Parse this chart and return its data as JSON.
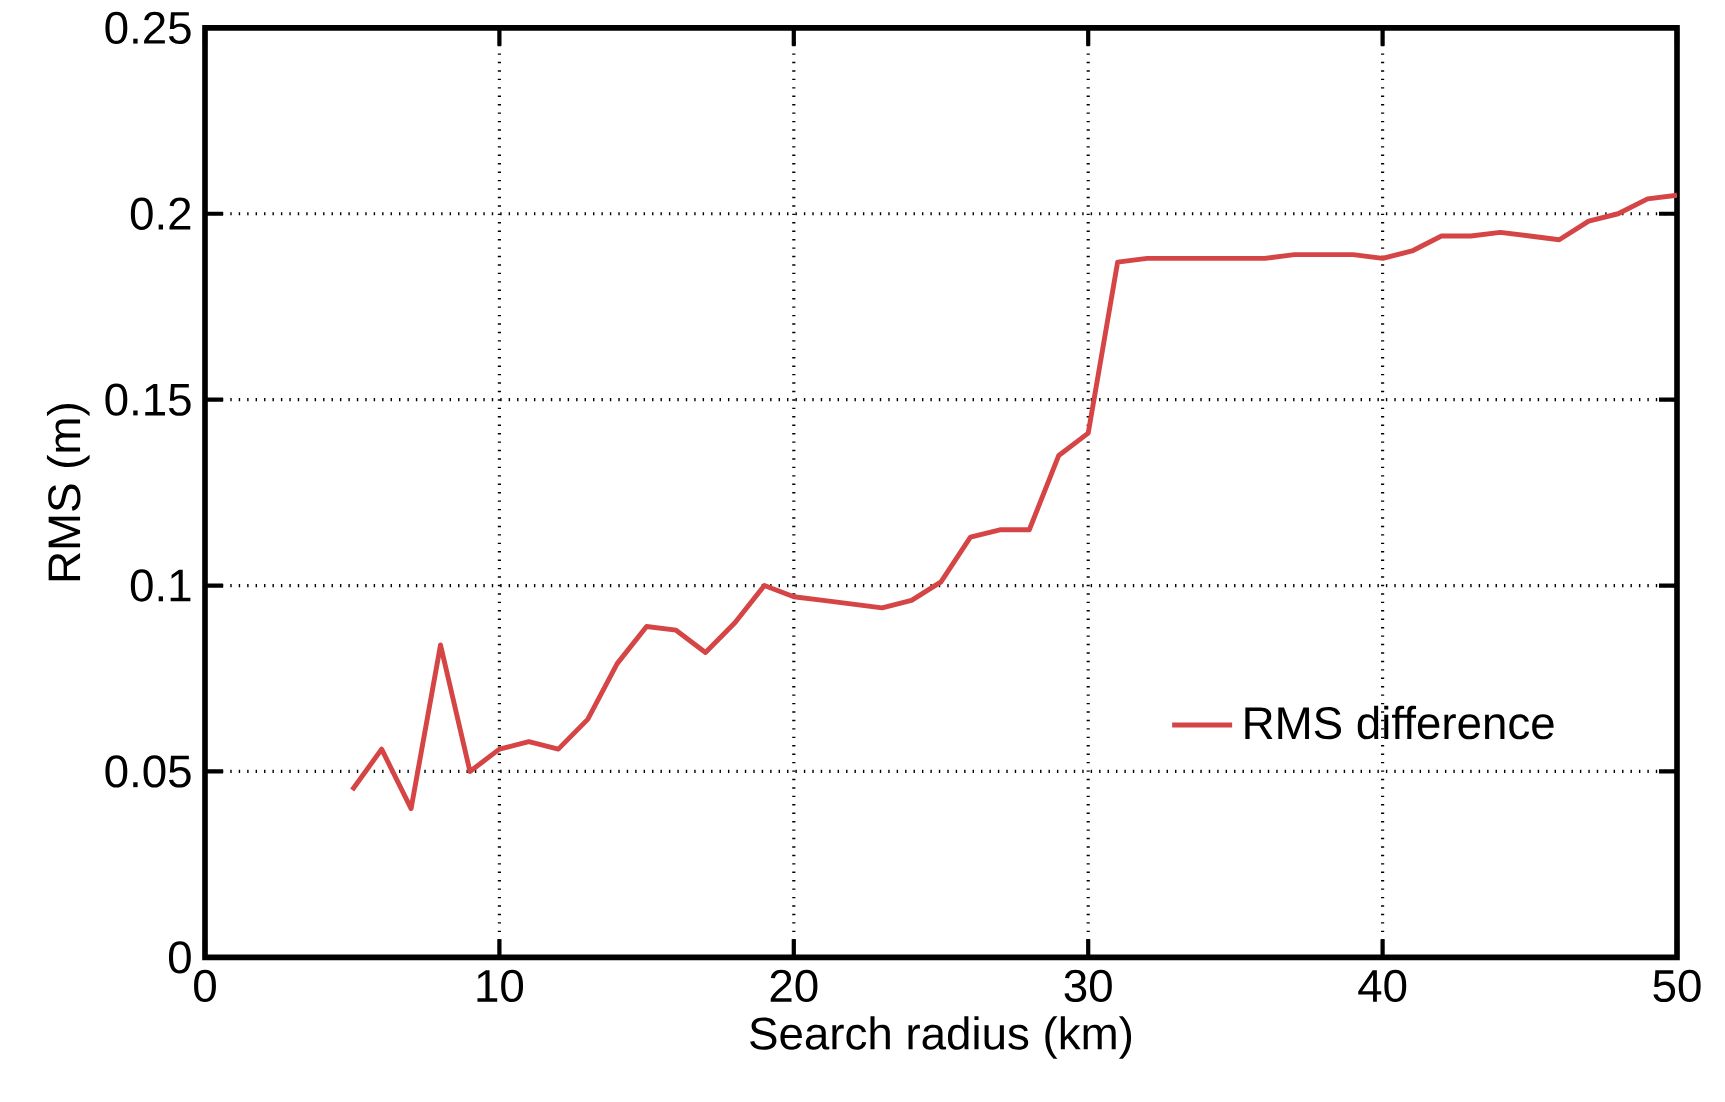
{
  "chart_data": {
    "type": "line",
    "xlabel": "Search radius (km)",
    "ylabel": "RMS (m)",
    "xlim": [
      0,
      50
    ],
    "xticks": [
      0,
      10,
      20,
      30,
      40,
      50
    ],
    "ylim": [
      0,
      0.25
    ],
    "yticks": [
      0,
      0.05,
      0.1,
      0.15,
      0.2,
      0.25
    ],
    "grid": true,
    "legend": "right",
    "line_style": "solid",
    "series": [
      {
        "name": "RMS difference",
        "color": "#d64545",
        "x": [
          5,
          6,
          7,
          8,
          9,
          10,
          11,
          12,
          13,
          14,
          15,
          16,
          17,
          18,
          19,
          20,
          21,
          22,
          23,
          24,
          25,
          26,
          27,
          28,
          29,
          30,
          31,
          32,
          33,
          34,
          35,
          36,
          37,
          38,
          39,
          40,
          41,
          42,
          43,
          44,
          45,
          46,
          47,
          48,
          49,
          50
        ],
        "values": [
          0.045,
          0.056,
          0.04,
          0.084,
          0.05,
          0.056,
          0.058,
          0.056,
          0.064,
          0.079,
          0.089,
          0.088,
          0.082,
          0.09,
          0.1,
          0.097,
          0.096,
          0.095,
          0.094,
          0.096,
          0.101,
          0.113,
          0.115,
          0.115,
          0.135,
          0.141,
          0.187,
          0.188,
          0.188,
          0.188,
          0.188,
          0.188,
          0.189,
          0.189,
          0.189,
          0.188,
          0.19,
          0.194,
          0.194,
          0.195,
          0.194,
          0.193,
          0.198,
          0.2,
          0.204,
          0.205
        ]
      }
    ]
  }
}
